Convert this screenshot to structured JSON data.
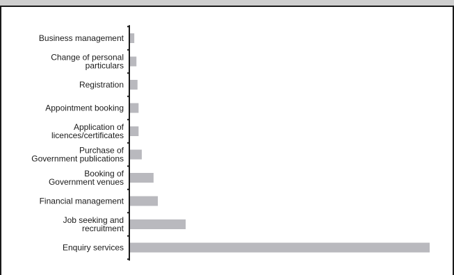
{
  "chart_data": {
    "type": "bar",
    "orientation": "horizontal",
    "categories": [
      [
        "Business management"
      ],
      [
        "Change of personal",
        "particulars"
      ],
      [
        "Registration"
      ],
      [
        "Appointment booking"
      ],
      [
        "Application of",
        "licences/certificates"
      ],
      [
        "Purchase of",
        "Government publications"
      ],
      [
        "Booking of",
        "Government venues"
      ],
      [
        "Financial management"
      ],
      [
        "Job seeking and",
        "recruitment"
      ],
      [
        "Enquiry services"
      ]
    ],
    "values": [
      2,
      3,
      3.5,
      4,
      4,
      5.5,
      11,
      13,
      26,
      140
    ],
    "xlim": [
      0,
      140
    ],
    "grid": false,
    "bar_color": "#b9b9be",
    "axis_color": "#1a1a1a",
    "frame_color": "#1a1a1a",
    "header_color": "#cfcfcf"
  }
}
